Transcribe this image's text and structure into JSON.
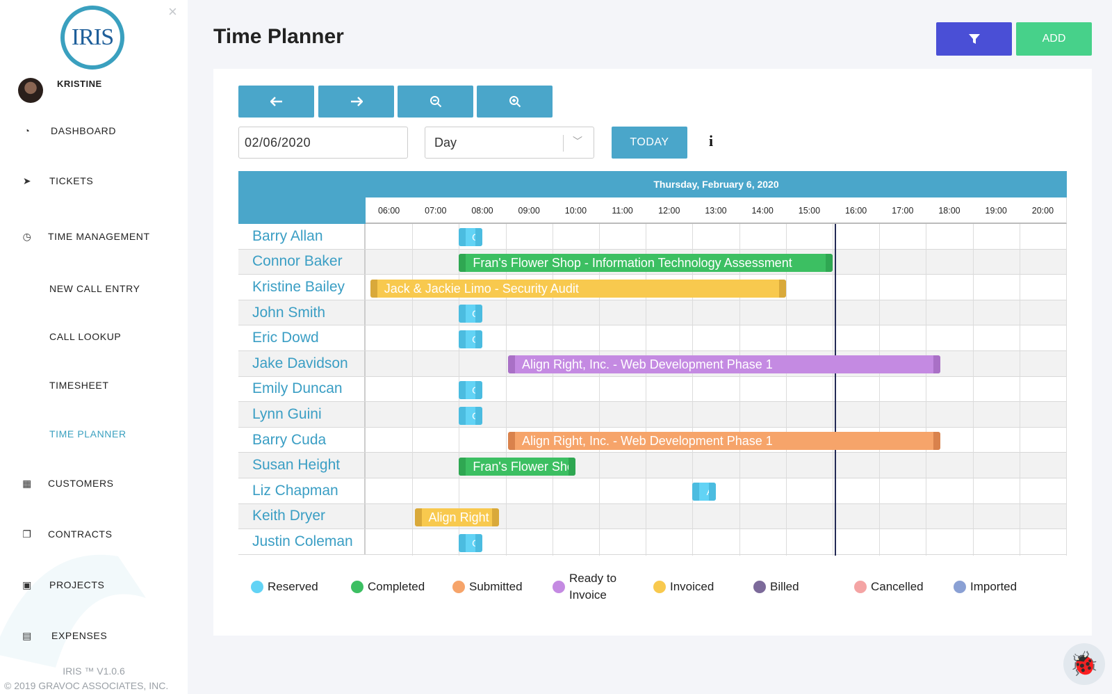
{
  "sidebar": {
    "logo_text": "IRIS",
    "user_name": "KRISTINE",
    "items": [
      {
        "label": "DASHBOARD",
        "icon": "dashboard-icon"
      },
      {
        "label": "TICKETS",
        "icon": "paper-plane-icon"
      },
      {
        "label": "TIME MANAGEMENT",
        "icon": "clock-icon"
      },
      {
        "label": "NEW CALL ENTRY"
      },
      {
        "label": "CALL LOOKUP"
      },
      {
        "label": "TIMESHEET"
      },
      {
        "label": "TIME PLANNER",
        "active": true
      },
      {
        "label": "CUSTOMERS",
        "icon": "building-icon"
      },
      {
        "label": "CONTRACTS",
        "icon": "documents-icon"
      },
      {
        "label": "PROJECTS",
        "icon": "briefcase-icon"
      },
      {
        "label": "EXPENSES",
        "icon": "money-icon"
      }
    ],
    "version": "IRIS ™ V1.0.6",
    "copyright": "© 2019 GRAVOC ASSOCIATES, INC."
  },
  "header": {
    "title": "Time Planner",
    "filter_icon": "filter-icon",
    "add_label": "ADD"
  },
  "toolbar": {
    "date_value": "02/06/2020",
    "view_value": "Day",
    "today_label": "TODAY",
    "buttons": [
      "arrow-left-icon",
      "arrow-right-icon",
      "zoom-out-icon",
      "zoom-in-icon"
    ]
  },
  "scheduler": {
    "date_label": "Thursday, February 6, 2020",
    "hours": [
      "06:00",
      "07:00",
      "08:00",
      "09:00",
      "10:00",
      "11:00",
      "12:00",
      "13:00",
      "14:00",
      "15:00",
      "16:00",
      "17:00",
      "18:00",
      "19:00",
      "20:00"
    ],
    "resources": [
      "Barry Allan",
      "Connor Baker",
      "Kristine Bailey",
      "John Smith",
      "Eric Dowd",
      "Jake Davidson",
      "Emily Duncan",
      "Lynn Guini",
      "Barry Cuda",
      "Susan Height",
      "Liz Chapman",
      "Keith Dryer",
      "Justin Coleman"
    ],
    "events": [
      {
        "row": 0,
        "start": 8.0,
        "end": 8.5,
        "label": "G",
        "status": "reserved"
      },
      {
        "row": 1,
        "start": 8.0,
        "end": 16.0,
        "label": "Fran's Flower Shop - Information Technology Assessment",
        "status": "completed"
      },
      {
        "row": 2,
        "start": 6.1,
        "end": 15.0,
        "label": "Jack & Jackie Limo - Security Audit",
        "status": "invoiced"
      },
      {
        "row": 3,
        "start": 8.0,
        "end": 8.5,
        "label": "G",
        "status": "reserved"
      },
      {
        "row": 4,
        "start": 8.0,
        "end": 8.5,
        "label": "G",
        "status": "reserved"
      },
      {
        "row": 5,
        "start": 9.05,
        "end": 18.3,
        "label": "Align Right, Inc. - Web Development Phase 1",
        "status": "ready"
      },
      {
        "row": 6,
        "start": 8.0,
        "end": 8.5,
        "label": "G",
        "status": "reserved"
      },
      {
        "row": 7,
        "start": 8.0,
        "end": 8.5,
        "label": "G",
        "status": "reserved"
      },
      {
        "row": 8,
        "start": 9.05,
        "end": 18.3,
        "label": "Align Right, Inc. - Web Development Phase 1",
        "status": "submitted"
      },
      {
        "row": 9,
        "start": 8.0,
        "end": 10.5,
        "label": "Fran's Flower Sho-",
        "status": "completed"
      },
      {
        "row": 10,
        "start": 13.0,
        "end": 13.5,
        "label": "A",
        "status": "reserved"
      },
      {
        "row": 11,
        "start": 7.05,
        "end": 8.85,
        "label": "Align Right In-",
        "status": "invoiced"
      },
      {
        "row": 12,
        "start": 8.0,
        "end": 8.5,
        "label": "G",
        "status": "reserved"
      }
    ],
    "now_time": 16.05
  },
  "legend": [
    {
      "label": "Reserved",
      "color": "#62d3f5"
    },
    {
      "label": "Completed",
      "color": "#3cbf62"
    },
    {
      "label": "Submitted",
      "color": "#f6a46a"
    },
    {
      "label": "Ready to Invoice",
      "color": "#c48ae2"
    },
    {
      "label": "Invoiced",
      "color": "#f8c94e"
    },
    {
      "label": "Billed",
      "color": "#7c6a9a"
    },
    {
      "label": "Cancelled",
      "color": "#f4a4a4"
    },
    {
      "label": "Imported",
      "color": "#8aa0d4"
    }
  ],
  "status_colors": {
    "reserved": {
      "fill": "#62d3f5",
      "handle": "#4bbce0"
    },
    "completed": {
      "fill": "#3cbf62",
      "handle": "#2fa752"
    },
    "invoiced": {
      "fill": "#f8c94e",
      "handle": "#d9a93a"
    },
    "ready": {
      "fill": "#c48ae2",
      "handle": "#a970c6"
    },
    "submitted": {
      "fill": "#f6a46a",
      "handle": "#d9824c"
    }
  }
}
